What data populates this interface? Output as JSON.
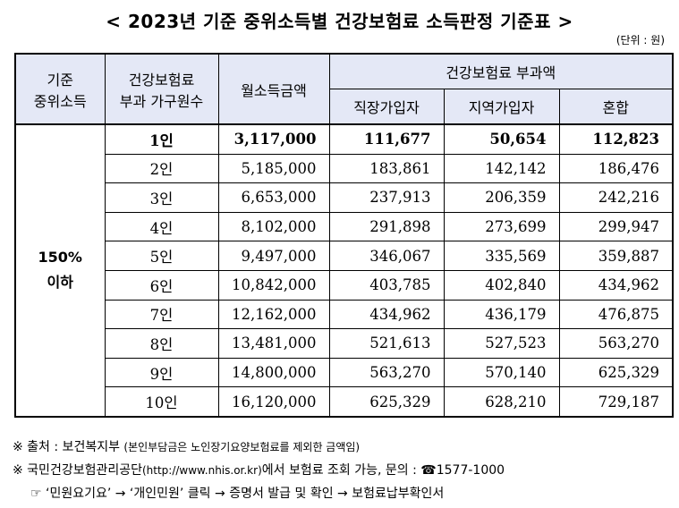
{
  "title": "< 2023년 기준 중위소득별 건강보험료 소득판정 기준표 >",
  "unit": "(단위 : 원)",
  "headers": {
    "median_income": [
      "기준",
      "중위소득"
    ],
    "household": [
      "건강보험료",
      "부과 가구원수"
    ],
    "monthly_income": "월소득금액",
    "premium_group": "건강보험료 부과액",
    "workplace": "직장가입자",
    "regional": "지역가입자",
    "mixed": "혼합"
  },
  "range_label": [
    "150%",
    "이하"
  ],
  "rows": [
    {
      "household": "1인",
      "income": "3,117,000",
      "workplace": "111,677",
      "regional": "50,654",
      "mixed": "112,823"
    },
    {
      "household": "2인",
      "income": "5,185,000",
      "workplace": "183,861",
      "regional": "142,142",
      "mixed": "186,476"
    },
    {
      "household": "3인",
      "income": "6,653,000",
      "workplace": "237,913",
      "regional": "206,359",
      "mixed": "242,216"
    },
    {
      "household": "4인",
      "income": "8,102,000",
      "workplace": "291,898",
      "regional": "273,699",
      "mixed": "299,947"
    },
    {
      "household": "5인",
      "income": "9,497,000",
      "workplace": "346,067",
      "regional": "335,569",
      "mixed": "359,887"
    },
    {
      "household": "6인",
      "income": "10,842,000",
      "workplace": "403,785",
      "regional": "402,840",
      "mixed": "434,962"
    },
    {
      "household": "7인",
      "income": "12,162,000",
      "workplace": "434,962",
      "regional": "436,179",
      "mixed": "476,875"
    },
    {
      "household": "8인",
      "income": "13,481,000",
      "workplace": "521,613",
      "regional": "527,523",
      "mixed": "563,270"
    },
    {
      "household": "9인",
      "income": "14,800,000",
      "workplace": "563,270",
      "regional": "570,140",
      "mixed": "625,329"
    },
    {
      "household": "10인",
      "income": "16,120,000",
      "workplace": "625,329",
      "regional": "628,210",
      "mixed": "729,187"
    }
  ],
  "notes": {
    "source_prefix": "※ 출처 : 보건복지부 ",
    "source_detail": "(본인부담금은 노인장기요양보험료를 제외한 금액임)",
    "contact_prefix": "※ 국민건강보험관리공단",
    "contact_url": "(http://www.nhis.or.kr)",
    "contact_suffix": "에서 보험료 조회 가능, 문의 : ☎1577-1000",
    "path": "☞ ‘민원요기요’ → ‘개인민원’ 클릭 → 증명서 발급 및 확인 → 보험료납부확인서"
  }
}
